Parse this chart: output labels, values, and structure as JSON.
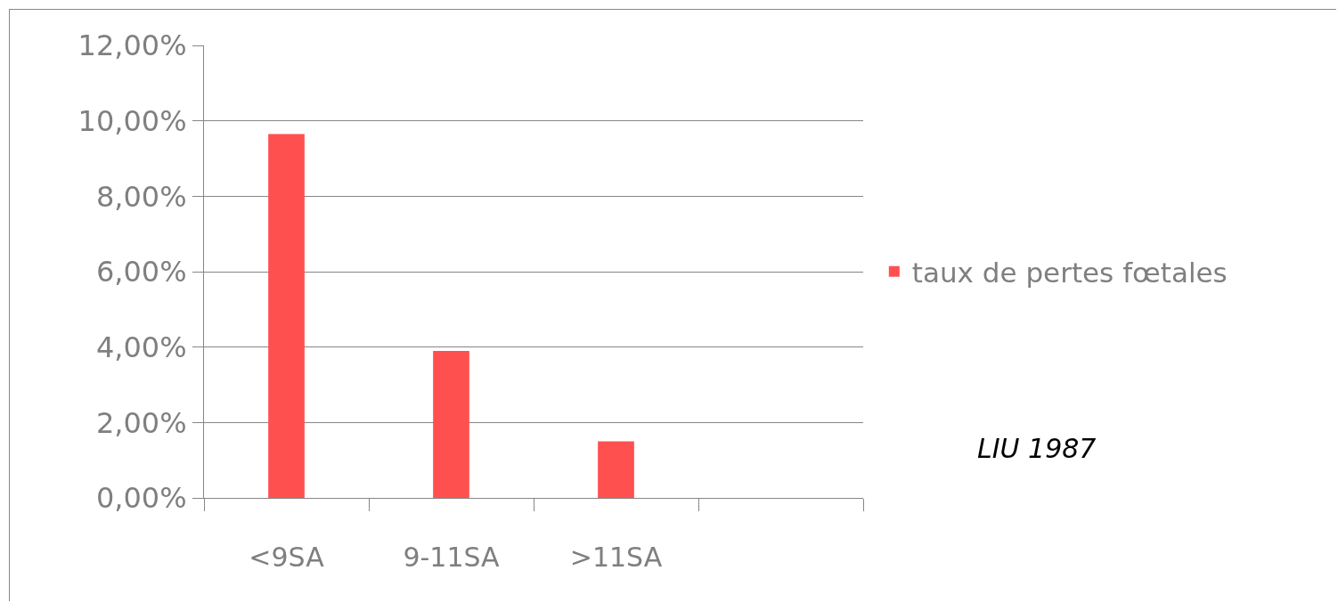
{
  "chart_data": {
    "type": "bar",
    "categories": [
      "<9SA",
      "9-11SA",
      ">11SA",
      null
    ],
    "series": [
      {
        "name": "taux de pertes fœtales",
        "color": "#ff5050",
        "values": [
          9.65,
          3.9,
          1.5,
          null
        ]
      }
    ],
    "ylim": [
      0,
      12
    ],
    "yticks": [
      {
        "value": 0,
        "label": "0,00%"
      },
      {
        "value": 2,
        "label": "2,00%"
      },
      {
        "value": 4,
        "label": "4,00%"
      },
      {
        "value": 6,
        "label": "6,00%"
      },
      {
        "value": 8,
        "label": "8,00%"
      },
      {
        "value": 10,
        "label": "10,00%"
      },
      {
        "value": 12,
        "label": "12,00%"
      }
    ],
    "grid": "y",
    "legend": "right",
    "annotations": [
      "LIU 1987"
    ]
  }
}
